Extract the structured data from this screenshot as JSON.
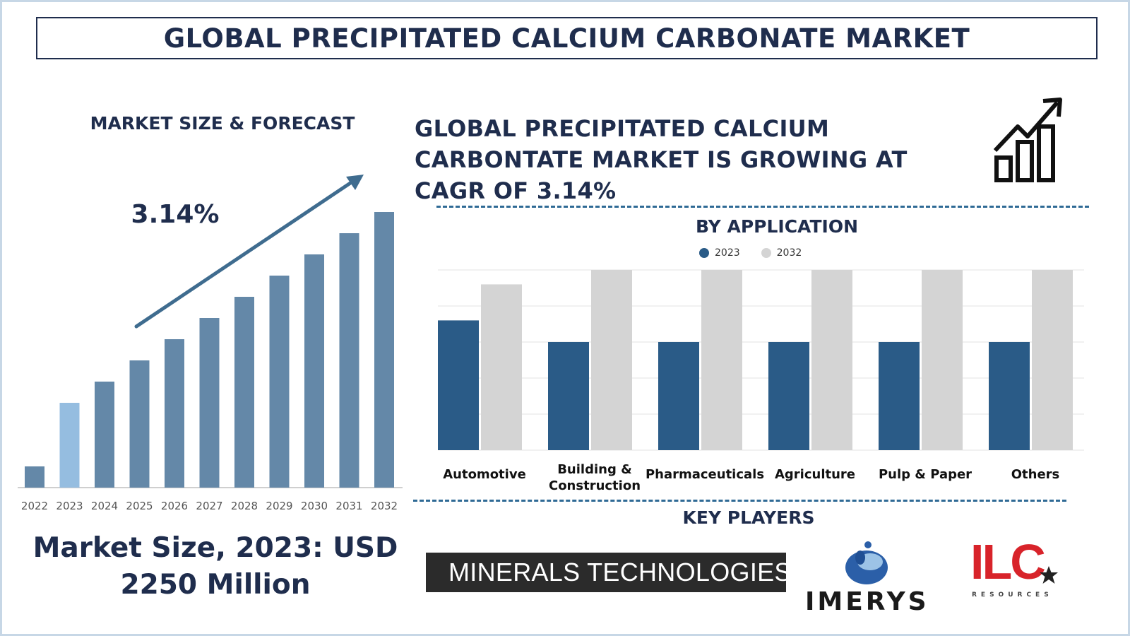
{
  "header": {
    "title": "GLOBAL PRECIPITATED CALCIUM CARBONATE MARKET"
  },
  "left_panel": {
    "heading": "MARKET SIZE & FORECAST",
    "market_size_line1": "Market Size, 2023: USD",
    "market_size_line2": "2250 Million"
  },
  "headline": {
    "line1": "GLOBAL PRECIPITATED CALCIUM",
    "line2": "CARBONTATE MARKET IS GROWING AT",
    "line3": "CAGR OF 3.14%"
  },
  "application": {
    "title": "BY APPLICATION"
  },
  "key_players": {
    "title": "KEY PLAYERS",
    "logos": [
      {
        "name": "MINERALS TECHNOLOGIES"
      },
      {
        "name": "IMERYS"
      },
      {
        "name": "ILC",
        "subtitle": "RESOURCES"
      }
    ]
  },
  "colors": {
    "navy": "#1f2d4d",
    "bar_2023_highlight": "#95bde0",
    "bar_forecast": "#6488a8",
    "series_2023": "#2a5b87",
    "series_2032": "#d4d4d4",
    "arrow": "#3f6c8f"
  },
  "chart_data": [
    {
      "type": "bar",
      "title": "MARKET SIZE & FORECAST",
      "categories": [
        "2022",
        "2023",
        "2024",
        "2025",
        "2026",
        "2027",
        "2028",
        "2029",
        "2030",
        "2031",
        "2032"
      ],
      "values": [
        1,
        4,
        5,
        6,
        7,
        8,
        9,
        10,
        11,
        12,
        13
      ],
      "highlight_category": "2023",
      "annotation": "3.14%",
      "ylim": [
        0,
        13
      ],
      "grid": false
    },
    {
      "type": "bar",
      "title": "BY APPLICATION",
      "categories": [
        "Automotive",
        "Building & Construction",
        "Pharmaceuticals",
        "Agriculture",
        "Pulp & Paper",
        "Others"
      ],
      "series": [
        {
          "name": "2023",
          "values": [
            3.6,
            3.0,
            3.0,
            3.0,
            3.0,
            3.0
          ]
        },
        {
          "name": "2032",
          "values": [
            4.6,
            5.0,
            5.0,
            5.0,
            5.0,
            5.0
          ]
        }
      ],
      "ylim": [
        0,
        5
      ],
      "grid": true,
      "legend": "top-center"
    }
  ]
}
